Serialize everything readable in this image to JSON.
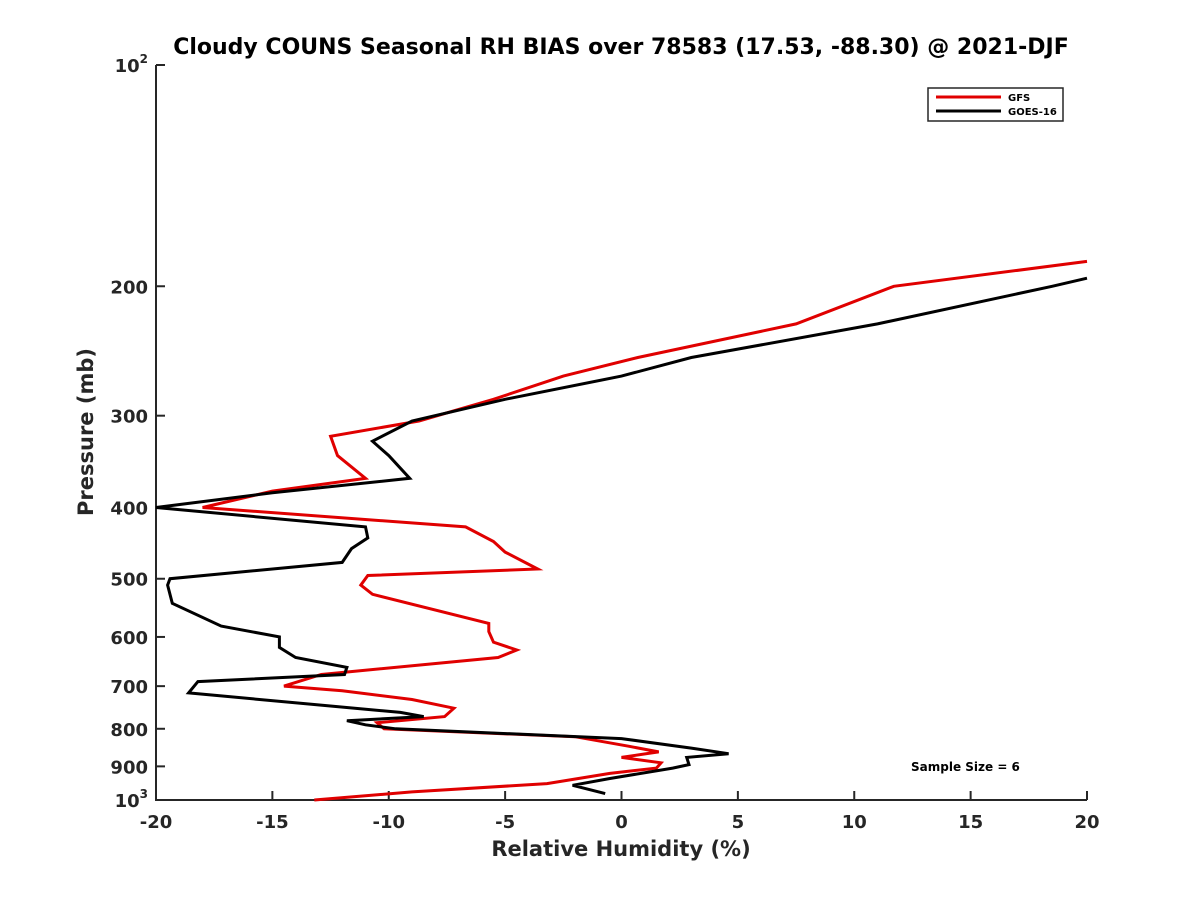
{
  "chart_data": {
    "type": "line",
    "title": "Cloudy COUNS Seasonal RH BIAS over 78583 (17.53, -88.30) @ 2021-DJF",
    "xlabel": "Relative Humidity (%)",
    "ylabel": "Pressure (mb)",
    "xlim": [
      -20,
      20
    ],
    "ylim": [
      100,
      1000
    ],
    "yscale": "log",
    "y_reversed": true,
    "grid": false,
    "xticks": [
      -20,
      -15,
      -10,
      -5,
      0,
      5,
      10,
      15,
      20
    ],
    "xtick_labels": [
      "-20",
      "-15",
      "-10",
      "-5",
      "0",
      "5",
      "10",
      "15",
      "20"
    ],
    "yticks": [
      {
        "value": 100,
        "base": "10",
        "exp": "2"
      },
      {
        "value": 200,
        "base": "200",
        "exp": ""
      },
      {
        "value": 300,
        "base": "300",
        "exp": ""
      },
      {
        "value": 400,
        "base": "400",
        "exp": ""
      },
      {
        "value": 500,
        "base": "500",
        "exp": ""
      },
      {
        "value": 600,
        "base": "600",
        "exp": ""
      },
      {
        "value": 700,
        "base": "700",
        "exp": ""
      },
      {
        "value": 800,
        "base": "800",
        "exp": ""
      },
      {
        "value": 900,
        "base": "900",
        "exp": ""
      },
      {
        "value": 1000,
        "base": "10",
        "exp": "3"
      }
    ],
    "legend_position": "top-right",
    "annotation": "Sample Size = 6",
    "series": [
      {
        "name": "GFS",
        "color": "#e00000",
        "points": [
          [
            20,
            185
          ],
          [
            11.7,
            200
          ],
          [
            7.5,
            225
          ],
          [
            0.7,
            250
          ],
          [
            -2.5,
            265
          ],
          [
            -5.5,
            285
          ],
          [
            -8.7,
            305
          ],
          [
            -12.5,
            320
          ],
          [
            -12.2,
            340
          ],
          [
            -11,
            365
          ],
          [
            -15,
            380
          ],
          [
            -18,
            400
          ],
          [
            -6.7,
            425
          ],
          [
            -5.5,
            445
          ],
          [
            -5,
            460
          ],
          [
            -3.6,
            485
          ],
          [
            -10.9,
            495
          ],
          [
            -11.2,
            510
          ],
          [
            -10.7,
            525
          ],
          [
            -5.7,
            575
          ],
          [
            -5.7,
            590
          ],
          [
            -5.5,
            610
          ],
          [
            -4.5,
            625
          ],
          [
            -5.3,
            640
          ],
          [
            -12.9,
            675
          ],
          [
            -14.5,
            700
          ],
          [
            -12,
            710
          ],
          [
            -9,
            730
          ],
          [
            -7.2,
            750
          ],
          [
            -7.6,
            770
          ],
          [
            -10.5,
            785
          ],
          [
            -10.2,
            800
          ],
          [
            -2,
            820
          ],
          [
            0.3,
            845
          ],
          [
            1.6,
            860
          ],
          [
            0,
            875
          ],
          [
            1.7,
            890
          ],
          [
            1.5,
            905
          ],
          [
            -0.5,
            920
          ],
          [
            -3.2,
            950
          ],
          [
            -9,
            975
          ],
          [
            -13.2,
            1000
          ]
        ]
      },
      {
        "name": "GOES-16",
        "color": "#000000",
        "points": [
          [
            20,
            195
          ],
          [
            18.5,
            200
          ],
          [
            11,
            225
          ],
          [
            3,
            250
          ],
          [
            0,
            265
          ],
          [
            -5,
            285
          ],
          [
            -9,
            305
          ],
          [
            -10.7,
            325
          ],
          [
            -10,
            340
          ],
          [
            -9.1,
            365
          ],
          [
            -15,
            382
          ],
          [
            -20,
            400
          ],
          [
            -11,
            425
          ],
          [
            -10.9,
            440
          ],
          [
            -11.6,
            455
          ],
          [
            -12,
            475
          ],
          [
            -19.4,
            500
          ],
          [
            -19.5,
            510
          ],
          [
            -19.3,
            540
          ],
          [
            -17.2,
            580
          ],
          [
            -14.7,
            600
          ],
          [
            -14.7,
            620
          ],
          [
            -14,
            640
          ],
          [
            -11.8,
            660
          ],
          [
            -11.9,
            675
          ],
          [
            -18.2,
            690
          ],
          [
            -18.6,
            715
          ],
          [
            -13.5,
            740
          ],
          [
            -9.5,
            760
          ],
          [
            -8.5,
            770
          ],
          [
            -11.8,
            780
          ],
          [
            -11,
            790
          ],
          [
            -9.7,
            800
          ],
          [
            0,
            825
          ],
          [
            3,
            850
          ],
          [
            4.6,
            865
          ],
          [
            2.8,
            875
          ],
          [
            2.9,
            895
          ],
          [
            2.2,
            905
          ],
          [
            -0.5,
            935
          ],
          [
            -2.1,
            955
          ],
          [
            -0.7,
            980
          ]
        ]
      }
    ]
  }
}
